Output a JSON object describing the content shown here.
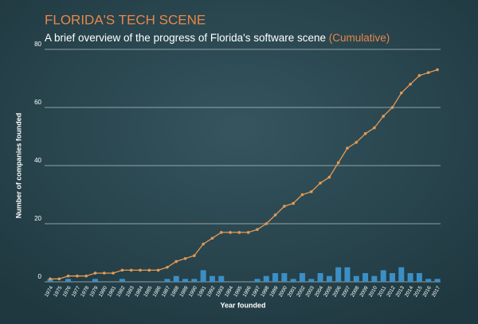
{
  "chart_data": {
    "type": "bar_line",
    "title": "FLORIDA'S TECH SCENE",
    "subtitle": "A brief overview of the progress of Florida's software scene",
    "subtitle_note": "(Cumulative)",
    "y_label": "Number of companies founded",
    "x_label": "Year founded",
    "categories": [
      "1974",
      "1975",
      "1976",
      "1977",
      "1978",
      "1979",
      "1980",
      "1981",
      "1982",
      "1983",
      "1984",
      "1985",
      "1986",
      "1987",
      "1988",
      "1989",
      "1990",
      "1991",
      "1992",
      "1993",
      "1994",
      "1995",
      "1996",
      "1997",
      "1998",
      "1999",
      "2000",
      "2001",
      "2002",
      "2003",
      "2004",
      "2005",
      "2006",
      "2007",
      "2008",
      "2009",
      "2010",
      "2011",
      "2012",
      "2013",
      "2014",
      "2015",
      "2016",
      "2017"
    ],
    "bars": {
      "color": "#3b8fc6",
      "values": [
        1,
        0,
        1,
        0,
        0,
        1,
        0,
        0,
        1,
        0,
        0,
        0,
        0,
        1,
        2,
        1,
        1,
        4,
        2,
        2,
        0,
        0,
        0,
        1,
        2,
        3,
        3,
        1,
        3,
        1,
        3,
        2,
        5,
        5,
        2,
        3,
        2,
        4,
        3,
        5,
        3,
        3,
        1,
        1
      ]
    },
    "line": {
      "color": "#e39a55",
      "values": [
        1,
        1,
        2,
        2,
        2,
        3,
        3,
        3,
        4,
        4,
        4,
        4,
        4,
        5,
        7,
        8,
        9,
        13,
        15,
        17,
        17,
        17,
        17,
        18,
        20,
        23,
        26,
        27,
        30,
        31,
        34,
        36,
        41,
        46,
        48,
        51,
        53,
        57,
        60,
        65,
        68,
        71,
        72,
        73
      ]
    },
    "ylim": [
      0,
      80
    ],
    "yticks": [
      0,
      20,
      40,
      60,
      80
    ],
    "grid": true
  }
}
